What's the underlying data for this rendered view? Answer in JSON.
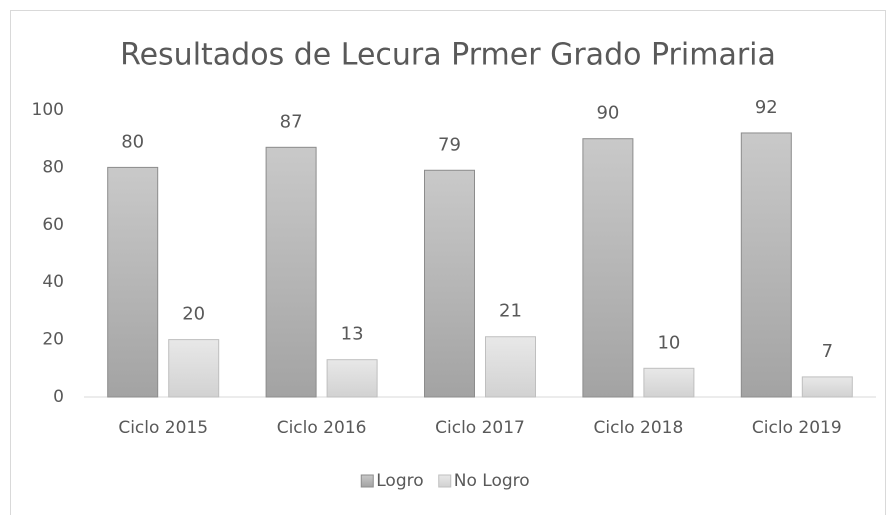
{
  "chart_data": {
    "type": "bar",
    "title": "Resultados de Lecura Prmer Grado Primaria",
    "categories": [
      "Ciclo 2015",
      "Ciclo 2016",
      "Ciclo 2017",
      "Ciclo 2018",
      "Ciclo 2019"
    ],
    "series": [
      {
        "name": "Logro",
        "color": "#b0b0b0",
        "values": [
          80,
          87,
          79,
          90,
          92
        ]
      },
      {
        "name": "No Logro",
        "color": "#dcdcdc",
        "values": [
          20,
          13,
          21,
          10,
          7
        ]
      }
    ],
    "ylim": [
      0,
      100
    ],
    "yticks": [
      0,
      20,
      40,
      60,
      80,
      100
    ],
    "grid": false,
    "legend": "bottom"
  }
}
